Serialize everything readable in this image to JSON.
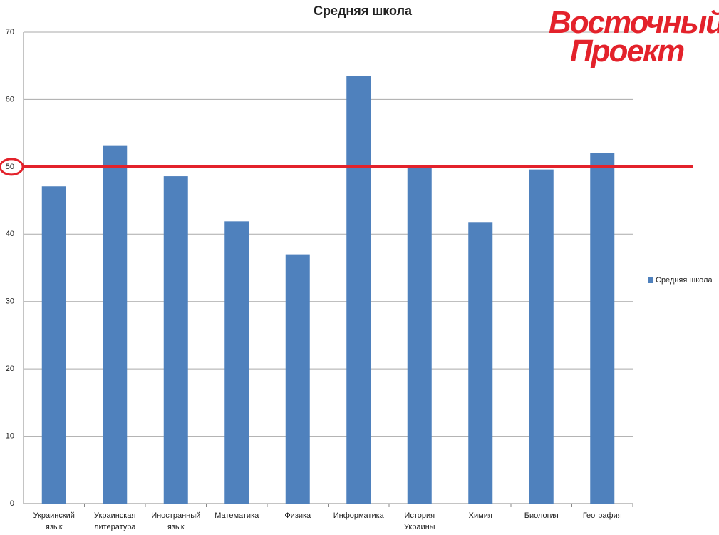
{
  "chart_data": {
    "type": "bar",
    "title": "Средняя школа",
    "categories": [
      "Украинский язык",
      "Украинская литература",
      "Иностранный язык",
      "Математика",
      "Физика",
      "Информатика",
      "История Украины",
      "Химия",
      "Биология",
      "География"
    ],
    "series": [
      {
        "name": "Средняя школа",
        "color": "#4f81bd",
        "values": [
          47.1,
          53.2,
          48.6,
          41.9,
          37.0,
          63.5,
          50.1,
          41.8,
          49.6,
          52.1
        ]
      }
    ],
    "ylim": [
      0,
      70
    ],
    "yticks": [
      0,
      10,
      20,
      30,
      40,
      50,
      60,
      70
    ],
    "grid": true,
    "legend": "right",
    "reference_line": {
      "value": 50,
      "color": "#e3222b"
    },
    "logo": [
      "Восточный",
      "Проект"
    ]
  }
}
